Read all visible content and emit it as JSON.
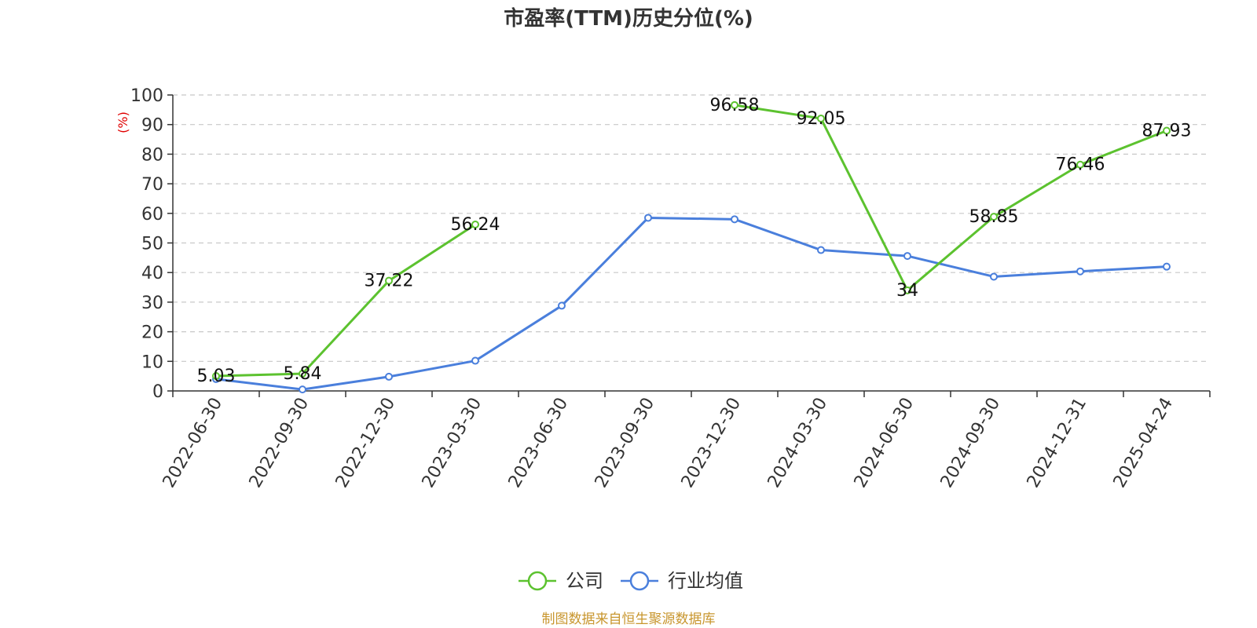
{
  "chart_data": {
    "type": "line",
    "title": "市盈率(TTM)历史分位(%)",
    "ylabel": "(%)",
    "ylim": [
      0,
      100
    ],
    "yticks": [
      0,
      10,
      20,
      30,
      40,
      50,
      60,
      70,
      80,
      90,
      100
    ],
    "grid": true,
    "legend_position": "bottom-center",
    "categories": [
      "2022-06-30",
      "2022-09-30",
      "2022-12-30",
      "2023-03-30",
      "2023-06-30",
      "2023-09-30",
      "2023-12-30",
      "2024-03-30",
      "2024-06-30",
      "2024-09-30",
      "2024-12-31",
      "2025-04-24"
    ],
    "series": [
      {
        "name": "公司",
        "color": "#5cc22f",
        "values": [
          5.03,
          5.84,
          37.22,
          56.24,
          null,
          null,
          96.58,
          92.05,
          34,
          58.85,
          76.46,
          87.93
        ],
        "labels": [
          "5.03",
          "5.84",
          "37.22",
          "56.24",
          null,
          null,
          "96.58",
          "92.05",
          "34",
          "58.85",
          "76.46",
          "87.93"
        ]
      },
      {
        "name": "行业均值",
        "color": "#4a7fdc",
        "values": [
          4.0,
          0.5,
          4.8,
          10.2,
          28.8,
          58.5,
          58.0,
          47.6,
          45.6,
          38.6,
          40.4,
          42.0
        ],
        "labels": null
      }
    ],
    "source": "制图数据来自恒生聚源数据库"
  }
}
